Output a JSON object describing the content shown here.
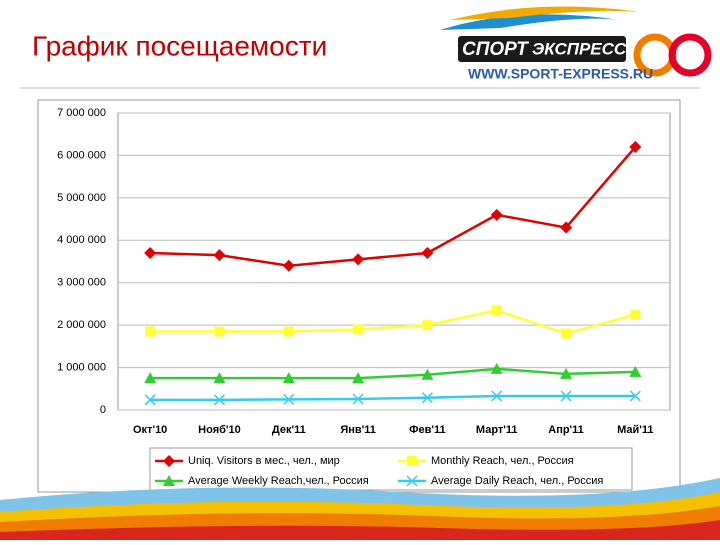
{
  "slide_title": "График посещаемости",
  "logo": {
    "brand_left": "СПОРТ",
    "brand_right": "ЭКСПРЕСС",
    "url": "WWW.SPORT-EXPRESS.RU"
  },
  "chart_data": {
    "type": "line",
    "categories": [
      "Окт'10",
      "Нояб'10",
      "Дек'11",
      "Янв'11",
      "Фев'11",
      "Март'11",
      "Апр'11",
      "Май'11"
    ],
    "series": [
      {
        "name": "Uniq. Visitors в мес., чел., мир",
        "color": "#e00000",
        "marker": "diamond",
        "values": [
          3700000,
          3650000,
          3400000,
          3550000,
          3700000,
          4600000,
          4300000,
          6200000
        ]
      },
      {
        "name": "Monthly Reach, чел., Россия",
        "color": "#ffff33",
        "marker": "square",
        "values": [
          1850000,
          1850000,
          1850000,
          1900000,
          2000000,
          2350000,
          1800000,
          2250000
        ]
      },
      {
        "name": "Average Weekly Reach,чел., Россия",
        "color": "#33cc33",
        "marker": "triangle",
        "values": [
          750000,
          750000,
          750000,
          750000,
          830000,
          970000,
          850000,
          900000
        ]
      },
      {
        "name": "Average Daily Reach, чел., Россия",
        "color": "#33ccee",
        "marker": "x",
        "values": [
          240000,
          240000,
          250000,
          260000,
          290000,
          330000,
          330000,
          330000
        ]
      }
    ],
    "ylim": [
      0,
      7000000
    ],
    "yticks": [
      0,
      {
        "value": 1000000,
        "label": "1 000 000"
      },
      {
        "value": 2000000,
        "label": "2 000 000"
      },
      {
        "value": 3000000,
        "label": "3 000 000"
      },
      {
        "value": 4000000,
        "label": "4 000 000"
      },
      {
        "value": 5000000,
        "label": "5 000 000"
      },
      {
        "value": 6000000,
        "label": "6 000 000"
      },
      {
        "value": 7000000,
        "label": "7 000 000"
      }
    ],
    "grid": true
  }
}
